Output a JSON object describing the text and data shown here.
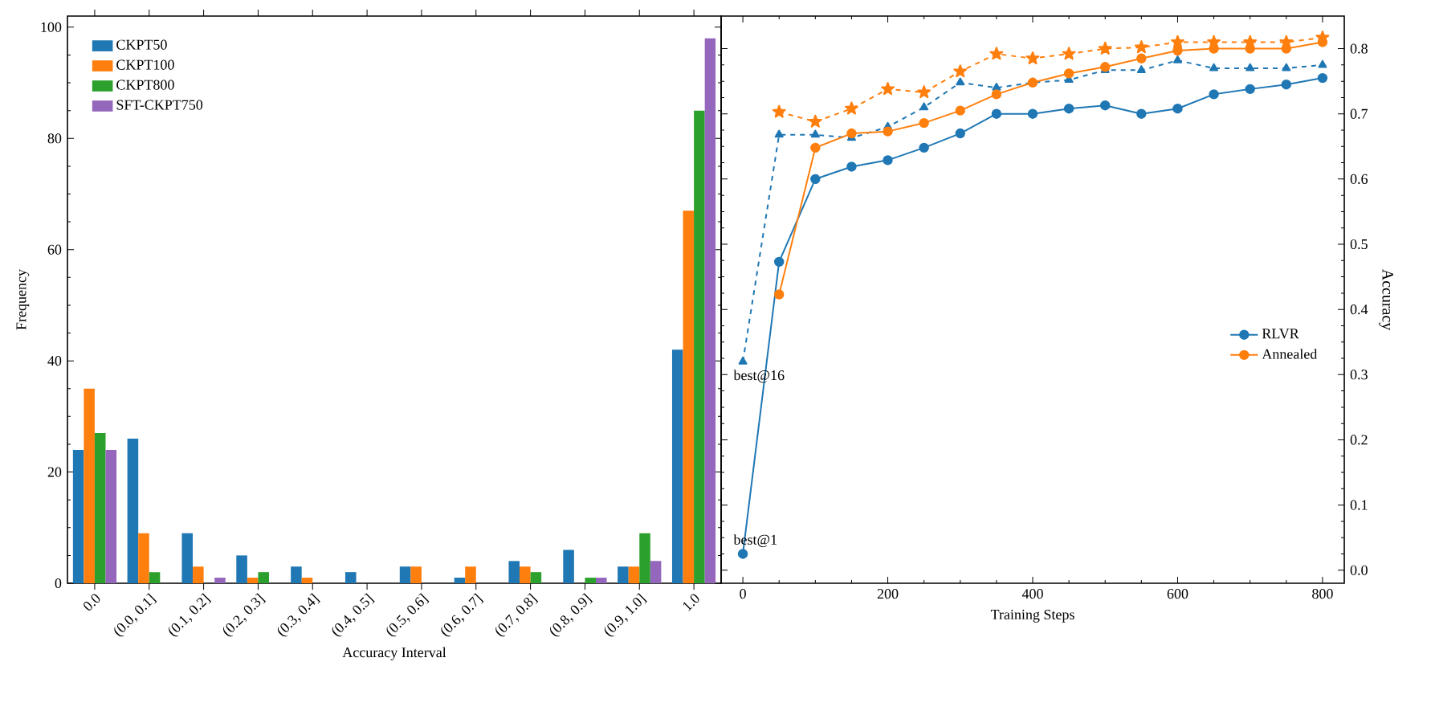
{
  "chart_data": [
    {
      "type": "bar",
      "xlabel": "Accuracy Interval",
      "ylabel": "Frequency",
      "categories": [
        "0.0",
        "(0.0, 0.1]",
        "(0.1, 0.2]",
        "(0.2, 0.3]",
        "(0.3, 0.4]",
        "(0.4, 0.5]",
        "(0.5, 0.6]",
        "(0.6, 0.7]",
        "(0.7, 0.8]",
        "(0.8, 0.9]",
        "(0.9, 1.0]",
        "1.0"
      ],
      "series": [
        {
          "name": "CKPT50",
          "color": "#1f77b4",
          "values": [
            24,
            26,
            9,
            5,
            3,
            2,
            3,
            1,
            4,
            6,
            3,
            42
          ]
        },
        {
          "name": "CKPT100",
          "color": "#ff7f0e",
          "values": [
            35,
            9,
            3,
            1,
            1,
            0,
            3,
            3,
            3,
            0,
            3,
            67
          ]
        },
        {
          "name": "CKPT800",
          "color": "#2ca02c",
          "values": [
            27,
            2,
            0,
            2,
            0,
            0,
            0,
            0,
            2,
            1,
            9,
            85
          ]
        },
        {
          "name": "SFT-CKPT750",
          "color": "#9467bd",
          "values": [
            24,
            0,
            1,
            0,
            0,
            0,
            0,
            0,
            0,
            1,
            4,
            98
          ]
        }
      ],
      "ylim": [
        0,
        102
      ],
      "yticks": [
        0,
        20,
        40,
        60,
        80,
        100
      ],
      "legend": "top left"
    },
    {
      "type": "line",
      "xlabel": "Training Steps",
      "ylabel": "Accuracy",
      "x": [
        0,
        50,
        100,
        150,
        200,
        250,
        300,
        350,
        400,
        450,
        500,
        550,
        600,
        650,
        700,
        750,
        800
      ],
      "series": [
        {
          "name": "RLVR",
          "color": "#1f77b4",
          "marker": "circle",
          "line_style": "solid",
          "values": [
            0.025,
            0.473,
            0.6,
            0.619,
            0.629,
            0.648,
            0.67,
            0.7,
            0.7,
            0.708,
            0.713,
            0.7,
            0.708,
            0.73,
            0.738,
            0.745,
            0.755
          ]
        },
        {
          "color": "#1f77b4",
          "marker": "triangle",
          "line_style": "dashed",
          "values": [
            0.32,
            0.668,
            0.668,
            0.663,
            0.68,
            0.71,
            0.748,
            0.74,
            0.748,
            0.752,
            0.767,
            0.767,
            0.782,
            0.77,
            0.77,
            0.77,
            0.775
          ]
        },
        {
          "name": "Annealed",
          "color": "#ff7f0e",
          "marker": "circle",
          "line_style": "solid",
          "values": [
            null,
            0.423,
            0.648,
            0.67,
            0.673,
            0.686,
            0.705,
            0.73,
            0.748,
            0.762,
            0.772,
            0.785,
            0.797,
            0.8,
            0.8,
            0.8,
            0.81
          ]
        },
        {
          "color": "#ff7f0e",
          "marker": "star",
          "line_style": "dashed",
          "values": [
            null,
            0.703,
            0.688,
            0.708,
            0.738,
            0.733,
            0.765,
            0.792,
            0.785,
            0.792,
            0.8,
            0.802,
            0.81,
            0.81,
            0.81,
            0.81,
            0.817
          ]
        }
      ],
      "xlim": [
        -30,
        830
      ],
      "xticks": [
        0,
        200,
        400,
        600,
        800
      ],
      "ylim": [
        -0.02,
        0.85
      ],
      "yticks": [
        {
          "value": 0,
          "label": "0.0"
        },
        0.1,
        0.2,
        0.3,
        0.4,
        0.5,
        0.6,
        0.7,
        0.8
      ],
      "annotations": [
        {
          "text": "best@1",
          "x": 0,
          "y": 0.025
        },
        {
          "text": "best@16",
          "x": 0,
          "y": 0.32
        }
      ],
      "legend": "right"
    }
  ]
}
